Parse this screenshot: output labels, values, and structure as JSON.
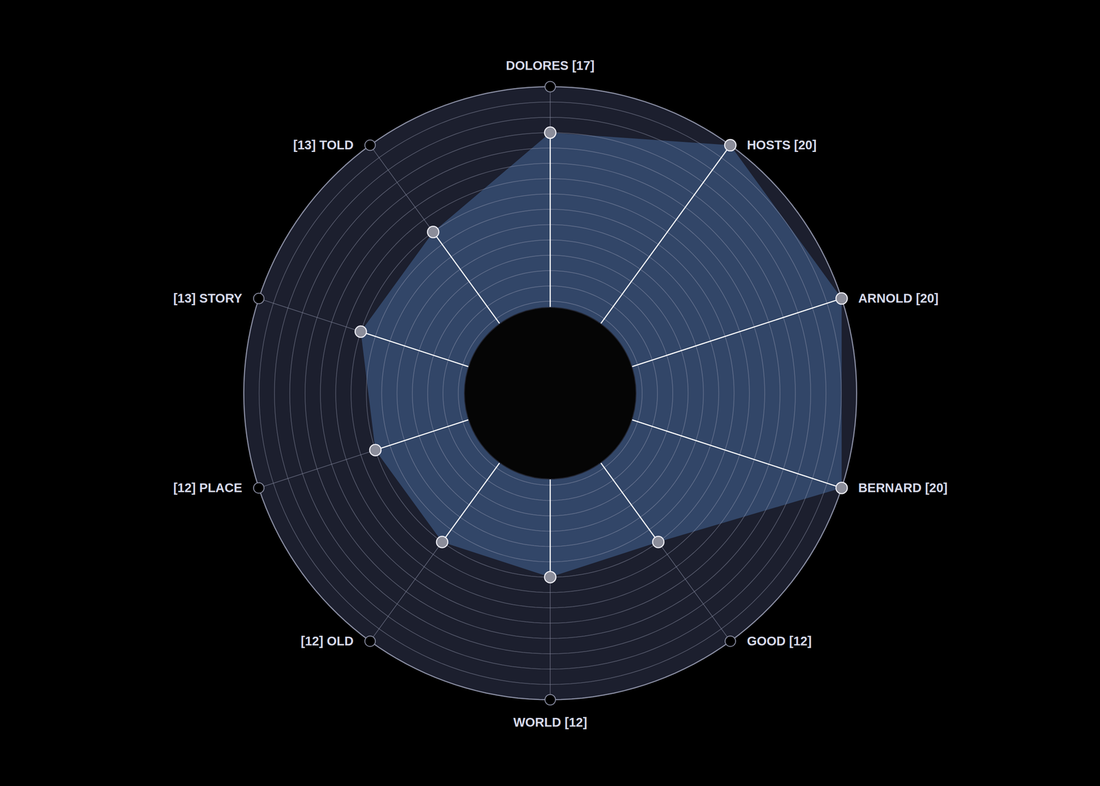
{
  "chart_data": {
    "type": "radar",
    "categories": [
      "DOLORES [17]",
      "HOSTS [20]",
      "ARNOLD [20]",
      "BERNARD [20]",
      "GOOD [12]",
      "WORLD [12]",
      "[12] OLD",
      "[12] PLACE",
      "[13] STORY",
      "[13] TOLD"
    ],
    "values": [
      17,
      20,
      20,
      20,
      12,
      12,
      12,
      12,
      13,
      13
    ],
    "color": "#34496b",
    "ylim": [
      0,
      20
    ],
    "yticks": [
      1,
      2,
      3,
      4,
      5,
      6,
      7,
      8,
      9,
      10,
      11,
      12,
      13,
      14,
      15,
      16,
      17,
      18,
      19,
      20
    ],
    "grid": true,
    "tick_labels": false
  }
}
